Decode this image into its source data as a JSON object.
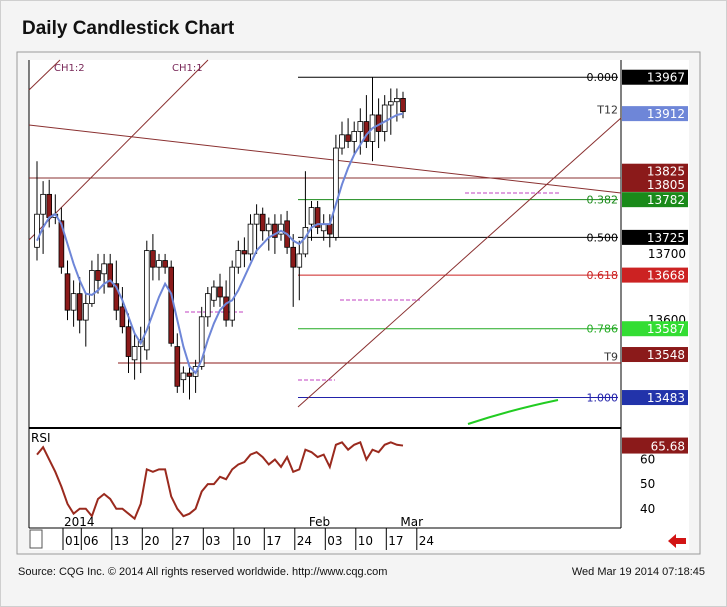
{
  "title": "Daily Candlestick Chart",
  "footer": {
    "source": "Source: CQG Inc. © 2014 All rights reserved worldwide. http://www.cqg.com",
    "timestamp": "Wed Mar 19 2014 07:18:45"
  },
  "colors": {
    "up": "#ffffff",
    "down": "#8b1a1a",
    "ma": "#6e86d8",
    "rsi": "#9a2a1e",
    "trend": "#8a3030",
    "fib0": "#000000",
    "fib382": "#1a8a1a",
    "fib500": "#000000",
    "fib618": "#cc2222",
    "fib786": "#22aa22",
    "fib100": "#2222aa"
  },
  "chart_data": {
    "type": "candlestick",
    "title": "Daily Candlestick Chart",
    "ylim": [
      13440,
      13990
    ],
    "rsi_ylim": [
      33,
      72
    ],
    "channel_labels": [
      "CH1:2",
      "CH1:1"
    ],
    "x_year_label": "2014",
    "x_month_labels": [
      {
        "label": "Feb",
        "index": 19
      },
      {
        "label": "Mar",
        "index": 34
      }
    ],
    "x_ticks": [
      {
        "label": "01",
        "index": 0
      },
      {
        "label": "06",
        "index": 3
      },
      {
        "label": "13",
        "index": 8
      },
      {
        "label": "20",
        "index": 13
      },
      {
        "label": "27",
        "index": 18
      },
      {
        "label": "03",
        "index": 23
      },
      {
        "label": "10",
        "index": 28
      },
      {
        "label": "17",
        "index": 33
      },
      {
        "label": "24",
        "index": 38
      },
      {
        "label": "03",
        "index": 43
      },
      {
        "label": "10",
        "index": 48
      },
      {
        "label": "17",
        "index": 53
      },
      {
        "label": "24",
        "index": 58
      }
    ],
    "price_ticks": [
      13700,
      13600
    ],
    "rsi_ticks": [
      60,
      50,
      40
    ],
    "fib_levels": [
      {
        "label": "0.000",
        "value": 13967,
        "color_key": "fib0"
      },
      {
        "label": "0.382",
        "value": 13782,
        "color_key": "fib382"
      },
      {
        "label": "0.500",
        "value": 13725,
        "color_key": "fib500"
      },
      {
        "label": "0.618",
        "value": 13668,
        "color_key": "fib618"
      },
      {
        "label": "0.786",
        "value": 13587,
        "color_key": "fib786"
      },
      {
        "label": "1.000",
        "value": 13483,
        "color_key": "fib100"
      }
    ],
    "price_tags": [
      {
        "text": "13967",
        "value": 13967,
        "bg": "#000000",
        "fg": "#ffffff"
      },
      {
        "text": "13912",
        "value": 13912,
        "bg": "#6e86d8",
        "fg": "#ffffff"
      },
      {
        "text": "13825",
        "value": 13825,
        "bg": "#8b1a1a",
        "fg": "#ffffff"
      },
      {
        "text": "13805",
        "value": 13805,
        "bg": "#8b1a1a",
        "fg": "#ffffff"
      },
      {
        "text": "13782",
        "value": 13782,
        "bg": "#1a8a1a",
        "fg": "#ffffff"
      },
      {
        "text": "13725",
        "value": 13725,
        "bg": "#000000",
        "fg": "#ffffff"
      },
      {
        "text": "13668",
        "value": 13668,
        "bg": "#cc2222",
        "fg": "#ffffff"
      },
      {
        "text": "13587",
        "value": 13587,
        "bg": "#33dd33",
        "fg": "#ffffff"
      },
      {
        "text": "13548",
        "value": 13548,
        "bg": "#8b1a1a",
        "fg": "#ffffff"
      },
      {
        "text": "13483",
        "value": 13483,
        "bg": "#2233aa",
        "fg": "#ffffff"
      }
    ],
    "rsi_tag": "65.68",
    "markers": [
      {
        "text": "T12",
        "value": 13918
      },
      {
        "text": "T9",
        "value": 13545
      }
    ],
    "candles": [
      {
        "o": 13710,
        "h": 13840,
        "l": 13690,
        "c": 13760
      },
      {
        "o": 13760,
        "h": 13810,
        "l": 13700,
        "c": 13790
      },
      {
        "o": 13790,
        "h": 13812,
        "l": 13740,
        "c": 13755
      },
      {
        "o": 13755,
        "h": 13790,
        "l": 13745,
        "c": 13760
      },
      {
        "o": 13750,
        "h": 13770,
        "l": 13670,
        "c": 13680
      },
      {
        "o": 13670,
        "h": 13690,
        "l": 13600,
        "c": 13615
      },
      {
        "o": 13615,
        "h": 13660,
        "l": 13590,
        "c": 13640
      },
      {
        "o": 13640,
        "h": 13665,
        "l": 13580,
        "c": 13600
      },
      {
        "o": 13600,
        "h": 13640,
        "l": 13560,
        "c": 13625
      },
      {
        "o": 13625,
        "h": 13690,
        "l": 13620,
        "c": 13675
      },
      {
        "o": 13675,
        "h": 13700,
        "l": 13640,
        "c": 13660
      },
      {
        "o": 13670,
        "h": 13700,
        "l": 13640,
        "c": 13685
      },
      {
        "o": 13685,
        "h": 13700,
        "l": 13650,
        "c": 13650
      },
      {
        "o": 13655,
        "h": 13690,
        "l": 13600,
        "c": 13615
      },
      {
        "o": 13620,
        "h": 13650,
        "l": 13580,
        "c": 13590
      },
      {
        "o": 13590,
        "h": 13610,
        "l": 13520,
        "c": 13545
      },
      {
        "o": 13540,
        "h": 13580,
        "l": 13510,
        "c": 13560
      },
      {
        "o": 13560,
        "h": 13590,
        "l": 13520,
        "c": 13570
      },
      {
        "o": 13555,
        "h": 13720,
        "l": 13540,
        "c": 13705
      },
      {
        "o": 13705,
        "h": 13730,
        "l": 13660,
        "c": 13680
      },
      {
        "o": 13680,
        "h": 13700,
        "l": 13660,
        "c": 13690
      },
      {
        "o": 13690,
        "h": 13700,
        "l": 13670,
        "c": 13680
      },
      {
        "o": 13680,
        "h": 13690,
        "l": 13560,
        "c": 13565
      },
      {
        "o": 13560,
        "h": 13580,
        "l": 13490,
        "c": 13500
      },
      {
        "o": 13510,
        "h": 13530,
        "l": 13490,
        "c": 13520
      },
      {
        "o": 13520,
        "h": 13530,
        "l": 13480,
        "c": 13515
      },
      {
        "o": 13515,
        "h": 13540,
        "l": 13490,
        "c": 13530
      },
      {
        "o": 13530,
        "h": 13620,
        "l": 13525,
        "c": 13605
      },
      {
        "o": 13605,
        "h": 13650,
        "l": 13590,
        "c": 13640
      },
      {
        "o": 13630,
        "h": 13660,
        "l": 13620,
        "c": 13650
      },
      {
        "o": 13650,
        "h": 13670,
        "l": 13620,
        "c": 13635
      },
      {
        "o": 13635,
        "h": 13660,
        "l": 13590,
        "c": 13600
      },
      {
        "o": 13600,
        "h": 13690,
        "l": 13590,
        "c": 13680
      },
      {
        "o": 13680,
        "h": 13720,
        "l": 13670,
        "c": 13705
      },
      {
        "o": 13705,
        "h": 13725,
        "l": 13680,
        "c": 13700
      },
      {
        "o": 13700,
        "h": 13760,
        "l": 13690,
        "c": 13745
      },
      {
        "o": 13745,
        "h": 13775,
        "l": 13700,
        "c": 13760
      },
      {
        "o": 13760,
        "h": 13770,
        "l": 13720,
        "c": 13735
      },
      {
        "o": 13735,
        "h": 13755,
        "l": 13705,
        "c": 13745
      },
      {
        "o": 13745,
        "h": 13760,
        "l": 13700,
        "c": 13725
      },
      {
        "o": 13730,
        "h": 13760,
        "l": 13720,
        "c": 13745
      },
      {
        "o": 13750,
        "h": 13765,
        "l": 13700,
        "c": 13710
      },
      {
        "o": 13710,
        "h": 13730,
        "l": 13620,
        "c": 13680
      },
      {
        "o": 13680,
        "h": 13720,
        "l": 13630,
        "c": 13700
      },
      {
        "o": 13700,
        "h": 13825,
        "l": 13695,
        "c": 13740
      },
      {
        "o": 13745,
        "h": 13780,
        "l": 13720,
        "c": 13770
      },
      {
        "o": 13770,
        "h": 13780,
        "l": 13730,
        "c": 13740
      },
      {
        "o": 13735,
        "h": 13760,
        "l": 13720,
        "c": 13745
      },
      {
        "o": 13745,
        "h": 13760,
        "l": 13710,
        "c": 13730
      },
      {
        "o": 13725,
        "h": 13880,
        "l": 13720,
        "c": 13860
      },
      {
        "o": 13860,
        "h": 13900,
        "l": 13850,
        "c": 13880
      },
      {
        "o": 13880,
        "h": 13905,
        "l": 13860,
        "c": 13870
      },
      {
        "o": 13870,
        "h": 13900,
        "l": 13850,
        "c": 13885
      },
      {
        "o": 13885,
        "h": 13920,
        "l": 13850,
        "c": 13900
      },
      {
        "o": 13900,
        "h": 13940,
        "l": 13860,
        "c": 13870
      },
      {
        "o": 13870,
        "h": 13967,
        "l": 13840,
        "c": 13910
      },
      {
        "o": 13910,
        "h": 13935,
        "l": 13860,
        "c": 13885
      },
      {
        "o": 13885,
        "h": 13940,
        "l": 13870,
        "c": 13925
      },
      {
        "o": 13925,
        "h": 13950,
        "l": 13880,
        "c": 13930
      },
      {
        "o": 13930,
        "h": 13950,
        "l": 13900,
        "c": 13935
      },
      {
        "o": 13935,
        "h": 13945,
        "l": 13905,
        "c": 13915
      }
    ],
    "ma": [
      13720,
      13740,
      13755,
      13760,
      13745,
      13715,
      13685,
      13660,
      13640,
      13638,
      13645,
      13655,
      13660,
      13650,
      13630,
      13605,
      13580,
      13565,
      13585,
      13610,
      13635,
      13655,
      13640,
      13600,
      13560,
      13530,
      13520,
      13540,
      13570,
      13595,
      13615,
      13625,
      13630,
      13645,
      13665,
      13685,
      13705,
      13715,
      13725,
      13730,
      13735,
      13730,
      13720,
      13715,
      13725,
      13740,
      13745,
      13745,
      13745,
      13775,
      13805,
      13830,
      13850,
      13865,
      13880,
      13890,
      13895,
      13900,
      13905,
      13910,
      13912
    ],
    "rsi": [
      62,
      65,
      60,
      55,
      49,
      42,
      38,
      40,
      40,
      37,
      44,
      46,
      44,
      40,
      40,
      38,
      36,
      42,
      56,
      55,
      56,
      56,
      45,
      40,
      37,
      38,
      40,
      47,
      50,
      50,
      53,
      52,
      56,
      58,
      59,
      62,
      63,
      61,
      58,
      60,
      57,
      61,
      55,
      56,
      64,
      63,
      61,
      62,
      57,
      66,
      67,
      64,
      66,
      67,
      60,
      64,
      63,
      66,
      67,
      66,
      65.68
    ]
  }
}
